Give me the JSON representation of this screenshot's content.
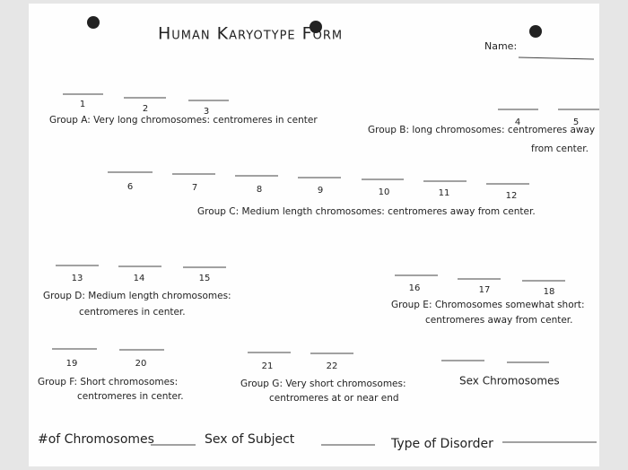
{
  "header": {
    "title": "Human Karyotype Form",
    "name_label": "Name:"
  },
  "groups": [
    {
      "lines": [
        "Group A: Very long chromosomes: centromeres in center"
      ],
      "numbers": [
        "1",
        "2",
        "3"
      ]
    },
    {
      "lines": [
        "Group B: long chromosomes: centromeres away",
        "from center."
      ],
      "numbers": [
        "4",
        "5"
      ]
    },
    {
      "lines": [
        "Group C: Medium length chromosomes: centromeres away from center."
      ],
      "numbers": [
        "6",
        "7",
        "8",
        "9",
        "10",
        "11",
        "12"
      ]
    },
    {
      "lines": [
        "Group D: Medium length chromosomes:",
        "centromeres in center."
      ],
      "numbers": [
        "13",
        "14",
        "15"
      ]
    },
    {
      "lines": [
        "Group E: Chromosomes somewhat short:",
        "centromeres away from center."
      ],
      "numbers": [
        "16",
        "17",
        "18"
      ]
    },
    {
      "lines": [
        "Group F: Short chromosomes:",
        "centromeres in center."
      ],
      "numbers": [
        "19",
        "20"
      ]
    },
    {
      "lines": [
        "Group G: Very short chromosomes:",
        "centromeres at or near end"
      ],
      "numbers": [
        "21",
        "22"
      ]
    }
  ],
  "sex_chromosomes": {
    "label": "Sex Chromosomes"
  },
  "footer": {
    "fields": [
      "#of Chromosomes",
      "Sex of Subject",
      "Type of Disorder"
    ]
  }
}
